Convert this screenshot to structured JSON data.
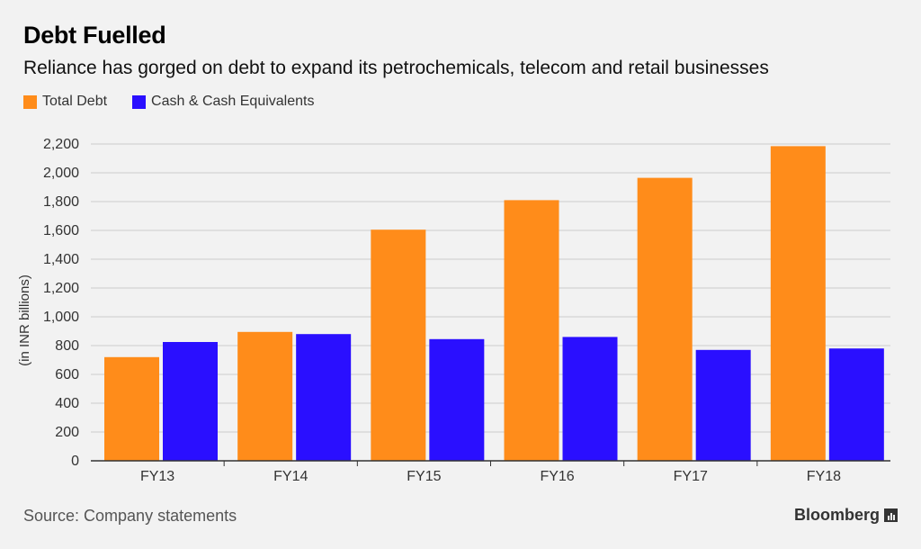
{
  "title": "Debt Fuelled",
  "subtitle": "Reliance has gorged on debt to expand its petrochemicals, telecom and retail businesses",
  "source": "Source: Company statements",
  "brand": "Bloomberg",
  "colors": {
    "total_debt": "#ff8c1a",
    "cash": "#2a0fff",
    "background": "#f2f2f2",
    "grid": "#cccccc"
  },
  "chart_data": {
    "type": "bar",
    "categories": [
      "FY13",
      "FY14",
      "FY15",
      "FY16",
      "FY17",
      "FY18"
    ],
    "series": [
      {
        "name": "Total Debt",
        "values": [
          720,
          895,
          1605,
          1810,
          1965,
          2185
        ]
      },
      {
        "name": "Cash & Cash Equivalents",
        "values": [
          825,
          880,
          845,
          860,
          770,
          780
        ]
      }
    ],
    "ylabel": "(in INR billions)",
    "xlabel": "",
    "ylim": [
      0,
      2200
    ],
    "yticks": [
      "0",
      "200",
      "400",
      "600",
      "800",
      "1,000",
      "1,200",
      "1,400",
      "1,600",
      "1,800",
      "2,000",
      "2,200"
    ],
    "grid": true,
    "legend_position": "top-left"
  }
}
